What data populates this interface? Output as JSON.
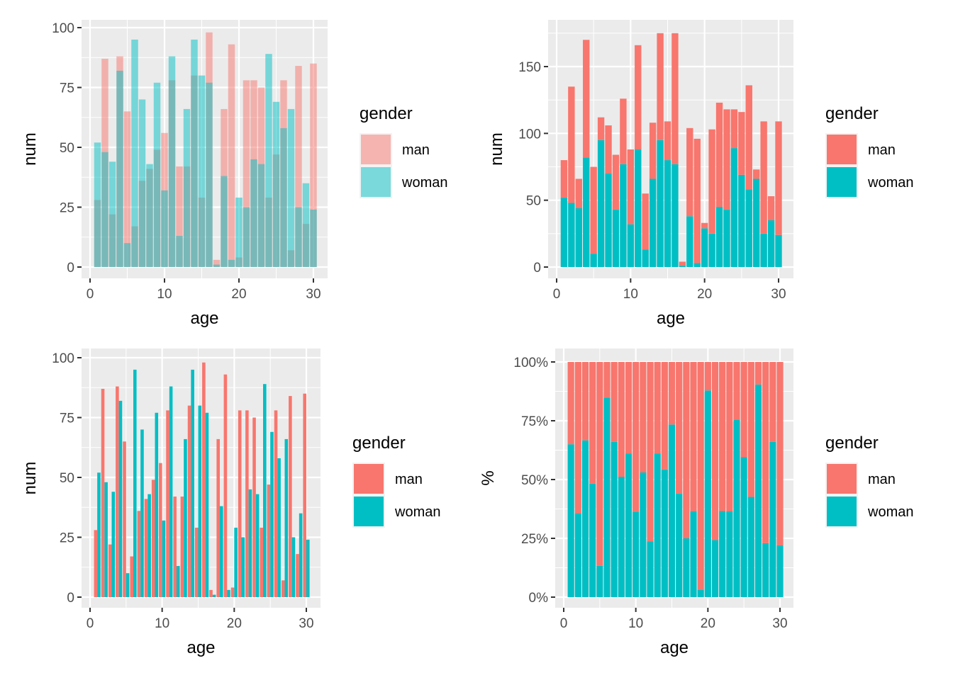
{
  "chart_data": [
    {
      "id": "overlay",
      "type": "bar",
      "position": "identity",
      "fill_alpha": 0.5,
      "title": "",
      "xlabel": "age",
      "ylabel": "num",
      "xlim": [
        0,
        30
      ],
      "ylim": [
        0,
        100
      ],
      "x_ticks": [
        "0",
        "10",
        "20",
        "30"
      ],
      "y_ticks": [
        "0",
        "25",
        "50",
        "75",
        "100"
      ],
      "legend": {
        "title": "gender",
        "placement": "right",
        "entries": [
          "man",
          "woman"
        ]
      }
    },
    {
      "id": "stacked",
      "type": "bar",
      "position": "stack",
      "title": "",
      "xlabel": "age",
      "ylabel": "num",
      "xlim": [
        0,
        30
      ],
      "ylim": [
        0,
        175
      ],
      "x_ticks": [
        "0",
        "10",
        "20",
        "30"
      ],
      "y_ticks": [
        "0",
        "50",
        "100",
        "150"
      ],
      "legend": {
        "title": "gender",
        "placement": "right",
        "entries": [
          "man",
          "woman"
        ]
      }
    },
    {
      "id": "dodged",
      "type": "bar",
      "position": "dodge",
      "title": "",
      "xlabel": "age",
      "ylabel": "num",
      "xlim": [
        0,
        30
      ],
      "ylim": [
        0,
        100
      ],
      "x_ticks": [
        "0",
        "10",
        "20",
        "30"
      ],
      "y_ticks": [
        "0",
        "25",
        "50",
        "75",
        "100"
      ],
      "legend": {
        "title": "gender",
        "placement": "right",
        "entries": [
          "man",
          "woman"
        ]
      }
    },
    {
      "id": "filled",
      "type": "bar",
      "position": "fill",
      "title": "",
      "xlabel": "age",
      "ylabel": "%",
      "xlim": [
        0,
        30
      ],
      "ylim": [
        0,
        1
      ],
      "x_ticks": [
        "0",
        "10",
        "20",
        "30"
      ],
      "y_ticks": [
        "0%",
        "25%",
        "50%",
        "75%",
        "100%"
      ],
      "legend": {
        "title": "gender",
        "placement": "right",
        "entries": [
          "man",
          "woman"
        ]
      }
    }
  ],
  "dataset": {
    "x": [
      1,
      2,
      3,
      4,
      5,
      6,
      7,
      8,
      9,
      10,
      11,
      12,
      13,
      14,
      15,
      16,
      17,
      18,
      19,
      20,
      21,
      22,
      23,
      24,
      25,
      26,
      27,
      28,
      29,
      30
    ],
    "series": [
      {
        "name": "man",
        "color": "#F8766D",
        "values": [
          28,
          87,
          22,
          88,
          65,
          17,
          36,
          41,
          49,
          56,
          78,
          42,
          42,
          80,
          29,
          98,
          3,
          66,
          93,
          4,
          78,
          78,
          75,
          29,
          47,
          78,
          7,
          84,
          18,
          85
        ]
      },
      {
        "name": "woman",
        "color": "#00BFC4",
        "values": [
          52,
          48,
          44,
          82,
          10,
          95,
          70,
          43,
          77,
          32,
          88,
          13,
          66,
          95,
          80,
          77,
          1,
          38,
          3,
          29,
          25,
          45,
          43,
          89,
          69,
          58,
          66,
          25,
          35,
          24
        ]
      }
    ]
  },
  "colors": {
    "panel_bg": "#EBEBEB",
    "grid": "#FFFFFF",
    "tick_text": "#4D4D4D",
    "axis_tick": "#333333"
  }
}
